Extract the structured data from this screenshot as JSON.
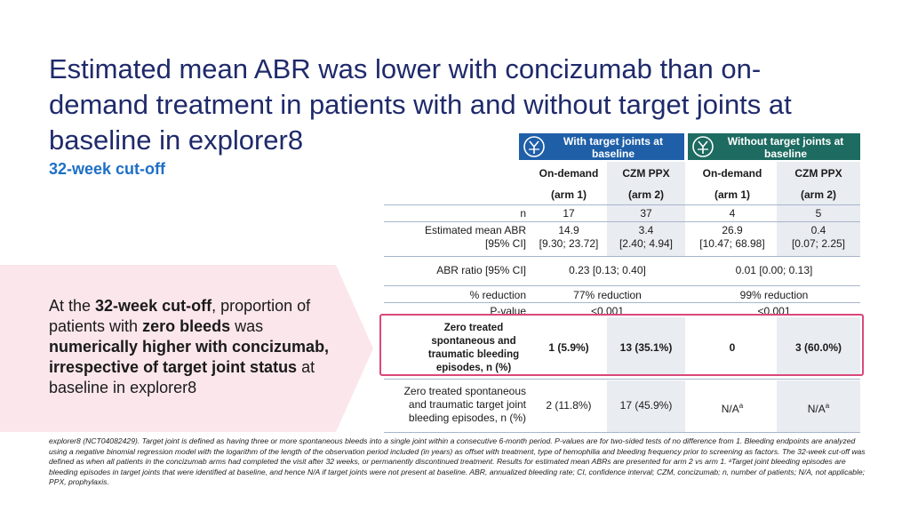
{
  "title": "Estimated mean ABR was lower with concizumab than on-demand treatment in patients with and without target joints at baseline in explorer8",
  "subtitle": "32-week cut-off",
  "callout": {
    "p1": "At the ",
    "b1": "32-week cut-off",
    "p2": ", proportion of patients with ",
    "b2": "zero bleeds",
    "p3": " was ",
    "b3": "numerically higher with concizumab, irrespective of target joint status",
    "p4": " at baseline in explorer8"
  },
  "table": {
    "group_headers": [
      {
        "label": "With target joints at baseline",
        "icon": "joint-icon"
      },
      {
        "label": "Without target joints at baseline",
        "icon": "joint-icon"
      }
    ],
    "columns": [
      {
        "name": "On-demand",
        "arm": "(arm 1)"
      },
      {
        "name": "CZM PPX",
        "arm": "(arm 2)"
      },
      {
        "name": "On-demand",
        "arm": "(arm 1)"
      },
      {
        "name": "CZM PPX",
        "arm": "(arm 2)"
      }
    ],
    "rows": {
      "n": {
        "label": "n",
        "values": [
          "17",
          "37",
          "4",
          "5"
        ]
      },
      "abr": {
        "label_1": "Estimated mean ABR",
        "label_2": "[95% CI]",
        "values": [
          [
            "14.9",
            "[9.30; 23.72]"
          ],
          [
            "3.4",
            "[2.40; 4.94]"
          ],
          [
            "26.9",
            "[10.47; 68.98]"
          ],
          [
            "0.4",
            "[0.07; 2.25]"
          ]
        ]
      },
      "ratio": {
        "label": "ABR ratio [95% CI]",
        "values": [
          "0.23 [0.13; 0.40]",
          "0.01 [0.00; 0.13]"
        ]
      },
      "reduction": {
        "label": "% reduction",
        "values": [
          "77% reduction",
          "99% reduction"
        ]
      },
      "pvalue": {
        "label": "P-value",
        "values": [
          "<0.001",
          "<0.001"
        ]
      },
      "zero_tj": {
        "label": "Zero treated spontaneous and traumatic bleeding episodes, n (%)",
        "values": [
          "1 (5.9%)",
          "13 (35.1%)",
          "0",
          "3 (60.0%)"
        ]
      },
      "zero_tjb": {
        "label_1": "Zero treated spontaneous",
        "label_2": "and traumatic target joint",
        "label_3": "bleeding episodes, n (%)",
        "values": [
          "2 (11.8%)",
          "17 (45.9%)",
          "N/A",
          "N/A"
        ],
        "sup": "a"
      }
    }
  },
  "footnote": "explorer8 (NCT04082429). Target joint is defined as having three or more spontaneous bleeds into a single joint within a consecutive 6-month period. P-values are for two-sided tests of no difference from 1. Bleeding endpoints are analyzed using a negative binomial regression model with the logarithm of the length of the observation period included (in years) as offset with treatment, type of hemophilia and bleeding frequency prior to screening as factors. The 32-week cut-off was defined as when all patients in the concizumab arms had completed the visit after 32 weeks, or permanently discontinued treatment. Results for estimated mean ABRs are presented for arm 2 vs arm 1. ᵃTarget joint bleeding episodes are bleeding episodes in target joints that were identified at baseline, and hence N/A if target joints were not present at baseline. ABR, annualized bleeding rate; CI, confidence interval; CZM, concizumab; n, number of patients; N/A, not applicable; PPX, prophylaxis.",
  "colors": {
    "title": "#1f2a6b",
    "accent": "#1d6fc6",
    "header_blue": "#1f5fa8",
    "header_green": "#1d6b61",
    "highlight": "#d9487a",
    "panel": "#fbe6ec"
  }
}
